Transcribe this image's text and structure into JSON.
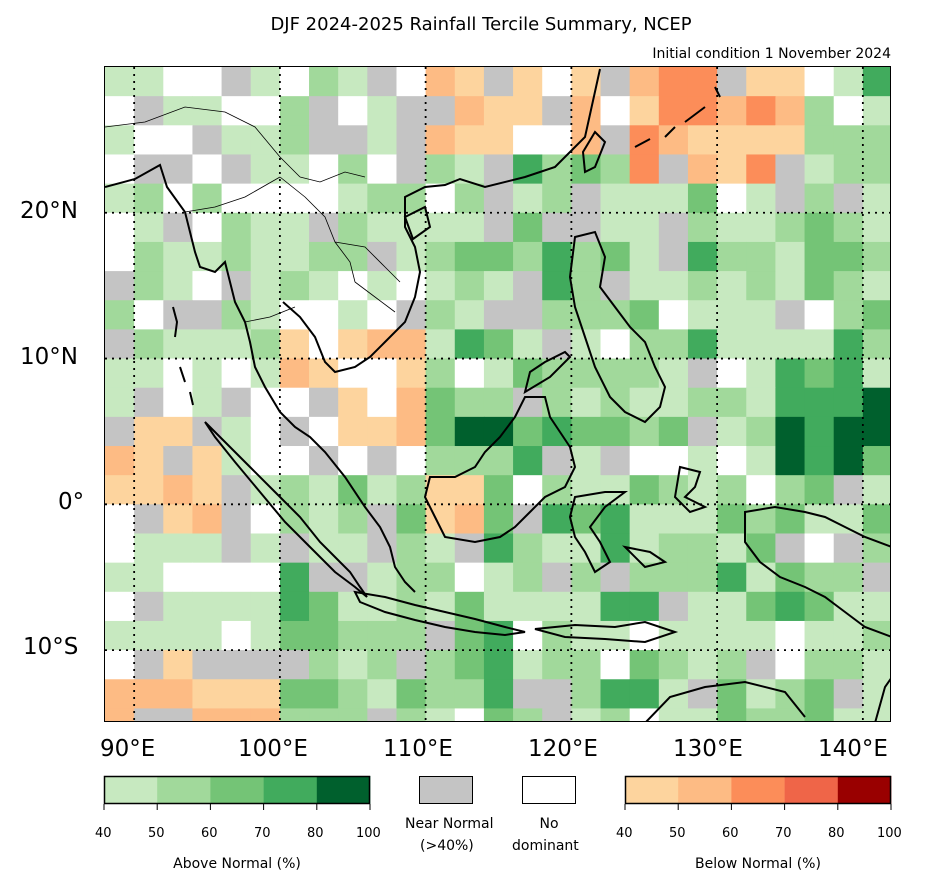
{
  "header": {
    "title": "DJF 2024-2025 Rainfall Tercile Summary, NCEP",
    "subtitle": "Initial condition 1 November 2024"
  },
  "map": {
    "lon_range": [
      88,
      142
    ],
    "lat_range": [
      -15,
      30
    ],
    "lon_ticks": [
      "90°E",
      "100°E",
      "110°E",
      "120°E",
      "130°E",
      "140°E"
    ],
    "lat_ticks": [
      "20°N",
      "10°N",
      "0°",
      "10°S"
    ],
    "grid": "dotted, every 10°",
    "colors": {
      "above": [
        "#c7e9c0",
        "#a1d99b",
        "#74c476",
        "#41ab5d",
        "#00602d"
      ],
      "below": [
        "#fdd49e",
        "#fdbb84",
        "#fc8d59",
        "#ef6548",
        "#990000"
      ],
      "near_normal": "#c4c4c4",
      "no_dominant": "#ffffff"
    }
  },
  "legend": {
    "above": {
      "title": "Above Normal (%)",
      "ticks": [
        "40",
        "50",
        "60",
        "70",
        "80",
        "100"
      ]
    },
    "near_normal": {
      "label_line1": "Near Normal",
      "label_line2": "(>40%)"
    },
    "no_dominant": {
      "label_line1": "No",
      "label_line2": "dominant"
    },
    "below": {
      "title": "Below Normal (%)",
      "ticks": [
        "40",
        "50",
        "60",
        "70",
        "80",
        "100"
      ]
    }
  }
}
